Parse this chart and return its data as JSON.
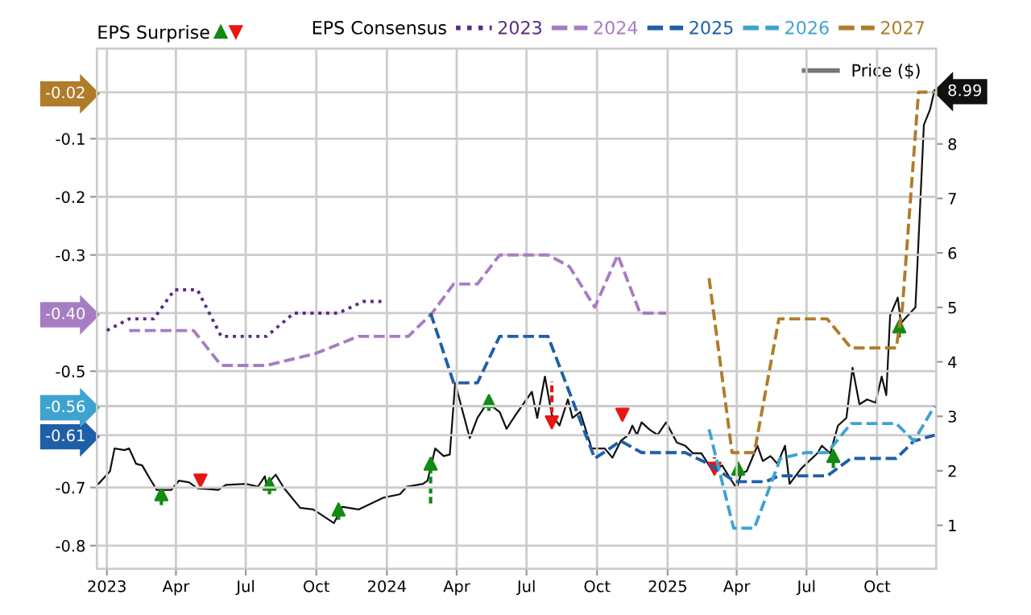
{
  "chart_data": {
    "type": "line",
    "annotations": [
      "EPS Surprise"
    ],
    "legend_title": "EPS Consensus",
    "legend": "top",
    "grid": true,
    "xlim": [
      "2022-12-19",
      "2025-12-17"
    ],
    "xticks": [
      {
        "value": "2023-01-01",
        "label": "2023"
      },
      {
        "value": "2023-04-01",
        "label": "Apr"
      },
      {
        "value": "2023-07-01",
        "label": "Jul"
      },
      {
        "value": "2023-10-01",
        "label": "Oct"
      },
      {
        "value": "2024-01-01",
        "label": "2024"
      },
      {
        "value": "2024-04-01",
        "label": "Apr"
      },
      {
        "value": "2024-07-01",
        "label": "Jul"
      },
      {
        "value": "2024-10-01",
        "label": "Oct"
      },
      {
        "value": "2025-01-01",
        "label": "2025"
      },
      {
        "value": "2025-04-01",
        "label": "Apr"
      },
      {
        "value": "2025-07-01",
        "label": "Jul"
      },
      {
        "value": "2025-10-01",
        "label": "Oct"
      }
    ],
    "ylim": [
      -0.84,
      0.055
    ],
    "yticks": [
      -0.8,
      -0.7,
      -0.61,
      -0.56,
      -0.5,
      {
        "value": -0.4,
        "label": "-0.40"
      },
      -0.3,
      -0.2,
      -0.1,
      -0.02
    ],
    "y2lim": [
      0.2,
      9.75
    ],
    "y2ticks": [
      1,
      2,
      3,
      4,
      5,
      6,
      7,
      8,
      8.99
    ],
    "series": [
      {
        "name": "2023",
        "color": "#5b2c83",
        "line_style": "dotted",
        "x": [
          "2023-01-01",
          "2023-01-30",
          "2023-03-03",
          "2023-03-30",
          "2023-04-29",
          "2023-05-30",
          "2023-07-28",
          "2023-09-02",
          "2023-10-30",
          "2023-12-01",
          "2023-12-28"
        ],
        "values": [
          -0.43,
          -0.41,
          -0.41,
          -0.36,
          -0.36,
          -0.44,
          -0.44,
          -0.4,
          -0.4,
          -0.38,
          -0.38
        ]
      },
      {
        "name": "2024",
        "color": "#a77dc2",
        "line_style": "dashed",
        "x": [
          "2023-01-30",
          "2023-04-24",
          "2023-05-30",
          "2023-07-28",
          "2023-09-29",
          "2023-11-25",
          "2024-01-29",
          "2024-02-29",
          "2024-03-28",
          "2024-04-28",
          "2024-05-27",
          "2024-07-29",
          "2024-08-26",
          "2024-09-28",
          "2024-10-28",
          "2024-11-26",
          "2024-12-30"
        ],
        "values": [
          -0.43,
          -0.43,
          -0.49,
          -0.49,
          -0.47,
          -0.44,
          -0.44,
          -0.4,
          -0.35,
          -0.35,
          -0.3,
          -0.3,
          -0.32,
          -0.39,
          -0.3,
          -0.4,
          -0.4
        ]
      },
      {
        "name": "2025",
        "color": "#1f5fa8",
        "line_style": "dashed",
        "x": [
          "2024-02-27",
          "2024-03-28",
          "2024-04-28",
          "2024-05-27",
          "2024-07-29",
          "2024-09-28",
          "2024-11-01",
          "2024-11-28",
          "2025-01-24",
          "2025-02-24",
          "2025-03-30",
          "2025-05-09",
          "2025-05-26",
          "2025-07-28",
          "2025-08-28",
          "2025-10-26",
          "2025-11-18",
          "2025-12-15"
        ],
        "values": [
          -0.4,
          -0.52,
          -0.52,
          -0.44,
          -0.44,
          -0.65,
          -0.62,
          -0.64,
          -0.64,
          -0.66,
          -0.69,
          -0.69,
          -0.68,
          -0.68,
          -0.65,
          -0.65,
          -0.62,
          -0.61
        ]
      },
      {
        "name": "2026",
        "color": "#3fa3cf",
        "line_style": "dashed",
        "x": [
          "2025-02-24",
          "2025-03-28",
          "2025-04-24",
          "2025-05-28",
          "2025-06-30",
          "2025-07-28",
          "2025-08-28",
          "2025-10-26",
          "2025-11-18",
          "2025-12-15"
        ],
        "values": [
          -0.6,
          -0.77,
          -0.77,
          -0.65,
          -0.64,
          -0.64,
          -0.59,
          -0.59,
          -0.62,
          -0.56
        ]
      },
      {
        "name": "2027",
        "color": "#b07c2a",
        "line_style": "dashed",
        "x": [
          "2025-02-24",
          "2025-03-26",
          "2025-04-24",
          "2025-05-26",
          "2025-07-28",
          "2025-08-28",
          "2025-10-26",
          "2025-11-03",
          "2025-11-24",
          "2025-12-15"
        ],
        "values": [
          -0.34,
          -0.64,
          -0.64,
          -0.41,
          -0.41,
          -0.46,
          -0.46,
          -0.39,
          -0.02,
          -0.02
        ]
      },
      {
        "name": "Price ($)",
        "color": "#111111",
        "line_style": "solid",
        "axis": "y2",
        "x": [
          "2022-12-21",
          "2023-01-05",
          "2023-01-11",
          "2023-01-24",
          "2023-01-30",
          "2023-02-08",
          "2023-02-16",
          "2023-02-25",
          "2023-03-07",
          "2023-03-26",
          "2023-04-05",
          "2023-04-18",
          "2023-04-29",
          "2023-05-26",
          "2023-06-05",
          "2023-07-01",
          "2023-07-17",
          "2023-07-26",
          "2023-07-28",
          "2023-08-09",
          "2023-08-20",
          "2023-09-10",
          "2023-09-27",
          "2023-10-09",
          "2023-10-24",
          "2023-11-04",
          "2023-11-25",
          "2023-12-28",
          "2024-01-18",
          "2024-01-27",
          "2024-02-17",
          "2024-02-23",
          "2024-03-04",
          "2024-03-15",
          "2024-03-23",
          "2024-03-30",
          "2024-04-18",
          "2024-04-28",
          "2024-05-11",
          "2024-05-27",
          "2024-06-05",
          "2024-06-17",
          "2024-07-08",
          "2024-07-15",
          "2024-07-25",
          "2024-08-03",
          "2024-08-13",
          "2024-08-24",
          "2024-08-30",
          "2024-09-09",
          "2024-09-24",
          "2024-10-11",
          "2024-10-21",
          "2024-11-01",
          "2024-11-11",
          "2024-11-16",
          "2024-11-22",
          "2024-11-28",
          "2024-12-09",
          "2024-12-19",
          "2024-12-30",
          "2025-01-13",
          "2025-01-24",
          "2025-02-03",
          "2025-02-14",
          "2025-03-01",
          "2025-03-13",
          "2025-03-24",
          "2025-04-01",
          "2025-04-07",
          "2025-04-14",
          "2025-04-28",
          "2025-05-05",
          "2025-05-15",
          "2025-05-24",
          "2025-06-03",
          "2025-06-09",
          "2025-06-24",
          "2025-07-15",
          "2025-07-21",
          "2025-08-01",
          "2025-08-11",
          "2025-08-22",
          "2025-08-30",
          "2025-09-08",
          "2025-09-18",
          "2025-09-29",
          "2025-10-07",
          "2025-10-13",
          "2025-10-18",
          "2025-10-28",
          "2025-11-01",
          "2025-11-10",
          "2025-11-20",
          "2025-12-01",
          "2025-12-09",
          "2025-12-15"
        ],
        "values": [
          1.76,
          1.99,
          2.41,
          2.38,
          2.41,
          2.13,
          2.1,
          1.88,
          1.65,
          1.65,
          1.82,
          1.79,
          1.68,
          1.65,
          1.74,
          1.76,
          1.71,
          1.9,
          1.74,
          1.93,
          1.68,
          1.32,
          1.29,
          1.18,
          1.04,
          1.34,
          1.29,
          1.51,
          1.57,
          1.71,
          1.76,
          1.82,
          2.41,
          2.27,
          2.3,
          3.61,
          2.6,
          2.97,
          3.25,
          3.08,
          2.77,
          3.03,
          3.45,
          2.97,
          3.73,
          3.03,
          2.83,
          3.31,
          2.97,
          3.08,
          2.41,
          2.41,
          2.24,
          2.55,
          2.66,
          2.83,
          2.66,
          2.89,
          2.75,
          2.66,
          2.89,
          2.52,
          2.46,
          2.32,
          2.32,
          1.99,
          2.1,
          1.85,
          1.68,
          1.96,
          1.99,
          2.46,
          2.18,
          2.27,
          2.13,
          2.46,
          1.76,
          2.04,
          2.32,
          2.46,
          2.32,
          2.83,
          2.97,
          3.89,
          3.22,
          3.31,
          3.25,
          3.73,
          3.39,
          4.85,
          5.18,
          4.71,
          4.85,
          5.0,
          8.35,
          8.63,
          8.99
        ]
      },
      {
        "type": "scatter",
        "marker": "triangle",
        "color": "#138a13",
        "axis": "y2",
        "x": [
          "2023-03-13",
          "2023-08-01",
          "2023-10-30",
          "2024-02-27",
          "2024-05-13",
          "2025-04-03",
          "2025-08-05",
          "2025-10-30"
        ],
        "values": [
          1.57,
          1.76,
          1.29,
          2.13,
          3.28,
          2.04,
          2.27,
          4.65
        ],
        "errors": [
          [
            1.37,
            1.57
          ],
          [
            1.57,
            1.76
          ],
          [
            1.1,
            1.29
          ],
          [
            1.4,
            2.13
          ],
          [
            3.1,
            3.28
          ],
          [
            1.9,
            2.04
          ],
          [
            2.05,
            2.27
          ],
          [
            4.45,
            4.65
          ]
        ]
      },
      {
        "type": "scatter",
        "marker": "triangle",
        "color": "#e81515",
        "axis": "y2",
        "x": [
          "2023-05-03",
          "2024-08-03",
          "2024-11-03",
          "2025-03-03"
        ],
        "values": [
          1.82,
          2.89,
          3.03,
          2.04
        ],
        "errors": [
          [
            1.82,
            2.0
          ],
          [
            2.89,
            3.64
          ],
          [
            3.03,
            3.2
          ],
          [
            2.04,
            2.25
          ]
        ]
      }
    ]
  }
}
